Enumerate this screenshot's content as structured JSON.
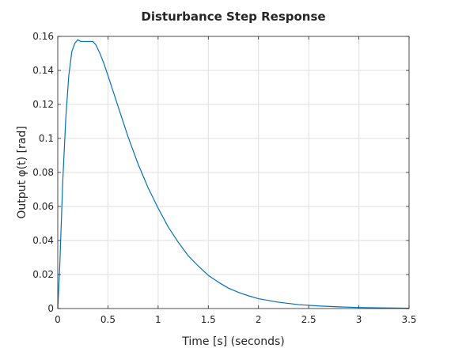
{
  "chart_data": {
    "type": "line",
    "title": "Disturbance Step Response",
    "xlabel": "Time [s] (seconds)",
    "ylabel": "Output φ(t) [rad]",
    "xlim": [
      0,
      3.5
    ],
    "ylim": [
      0,
      0.16
    ],
    "xticks": [
      0,
      0.5,
      1,
      1.5,
      2,
      2.5,
      3,
      3.5
    ],
    "xtick_labels": [
      "0",
      "0.5",
      "1",
      "1.5",
      "2",
      "2.5",
      "3",
      "3.5"
    ],
    "yticks": [
      0,
      0.02,
      0.04,
      0.06,
      0.08,
      0.1,
      0.12,
      0.14,
      0.16
    ],
    "ytick_labels": [
      "0",
      "0.02",
      "0.04",
      "0.06",
      "0.08",
      "0.1",
      "0.12",
      "0.14",
      "0.16"
    ],
    "grid": true,
    "series": [
      {
        "color": "#0072BD",
        "x": [
          0,
          0.02,
          0.05,
          0.08,
          0.11,
          0.14,
          0.17,
          0.2,
          0.23,
          0.26,
          0.3,
          0.35,
          0.38,
          0.42,
          0.46,
          0.5,
          0.6,
          0.7,
          0.8,
          0.9,
          1.0,
          1.1,
          1.2,
          1.3,
          1.4,
          1.5,
          1.6,
          1.7,
          1.8,
          1.9,
          2.0,
          2.2,
          2.4,
          2.6,
          2.8,
          3.0,
          3.2,
          3.5
        ],
        "y": [
          0,
          0.025,
          0.075,
          0.112,
          0.137,
          0.151,
          0.156,
          0.158,
          0.157,
          0.157,
          0.157,
          0.157,
          0.155,
          0.15,
          0.144,
          0.137,
          0.119,
          0.101,
          0.085,
          0.071,
          0.059,
          0.048,
          0.039,
          0.031,
          0.025,
          0.0195,
          0.0155,
          0.012,
          0.0095,
          0.0075,
          0.0058,
          0.0037,
          0.0023,
          0.0015,
          0.001,
          0.0006,
          0.0004,
          0.0002
        ]
      }
    ]
  }
}
